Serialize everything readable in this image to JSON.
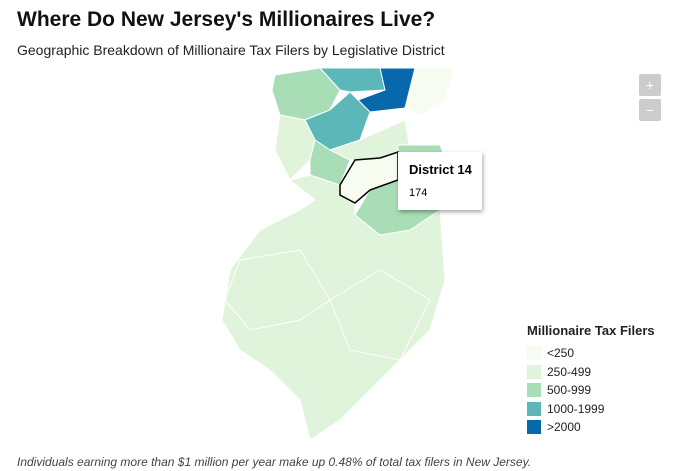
{
  "header": {
    "title": "Where Do New Jersey's Millionaires Live?",
    "subtitle": "Geographic Breakdown of Millionaire Tax Filers by Legislative District"
  },
  "zoom": {
    "in": "+",
    "out": "−"
  },
  "tooltip": {
    "title": "District 14",
    "value": 174
  },
  "legend": {
    "title": "Millionaire Tax Filers",
    "items": [
      {
        "label": "<250",
        "color": "#f7fcf0"
      },
      {
        "label": "250-499",
        "color": "#e0f3db"
      },
      {
        "label": "500-999",
        "color": "#a8ddb5"
      },
      {
        "label": "1000-1999",
        "color": "#5cb8b8"
      },
      {
        "label": ">2000",
        "color": "#0868ac"
      }
    ]
  },
  "footnote": "Individuals earning more than $1 million per year make up 0.48% of total tax filers in New Jersey."
}
